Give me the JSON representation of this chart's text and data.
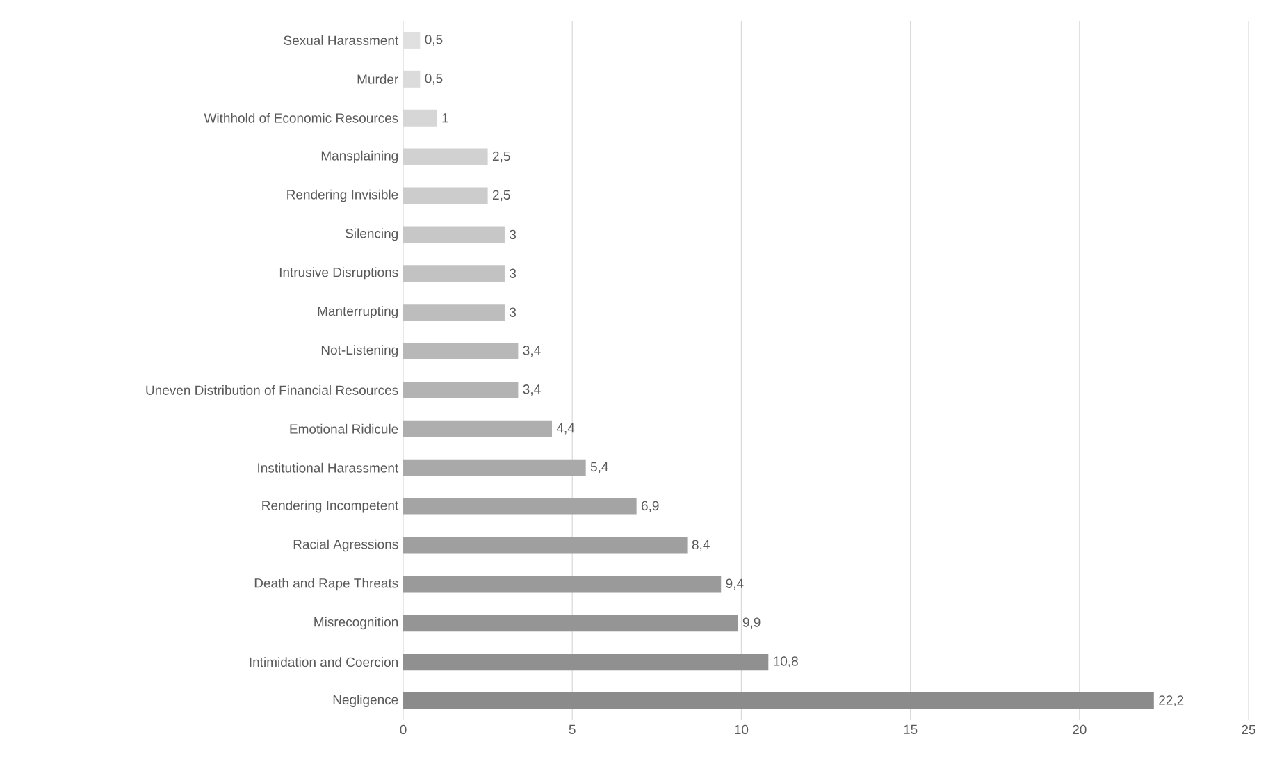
{
  "chart_data": {
    "type": "bar",
    "orientation": "horizontal",
    "categories": [
      "Sexual Harassment",
      "Murder",
      "Withhold of Economic Resources",
      "Mansplaining",
      "Rendering Invisible",
      "Silencing",
      "Intrusive Disruptions",
      "Manterrupting",
      "Not-Listening",
      "Uneven Distribution of Financial Resources",
      "Emotional Ridicule",
      "Institutional Harassment",
      "Rendering Incompetent",
      "Racial Agressions",
      "Death and Rape Threats",
      "Misrecognition",
      "Intimidation and Coercion",
      "Negligence"
    ],
    "values": [
      0.5,
      0.5,
      1,
      2.5,
      2.5,
      3,
      3,
      3,
      3.4,
      3.4,
      4.4,
      5.4,
      6.9,
      8.4,
      9.4,
      9.9,
      10.8,
      22.2
    ],
    "value_labels": [
      "0,5",
      "0,5",
      "1",
      "2,5",
      "2,5",
      "3",
      "3",
      "3",
      "3,4",
      "3,4",
      "4,4",
      "5,4",
      "6,9",
      "8,4",
      "9,4",
      "9,9",
      "10,8",
      "22,2"
    ],
    "colors": [
      "#e0e0e0",
      "#dbdbdb",
      "#d6d6d6",
      "#d1d1d1",
      "#cccccc",
      "#c7c7c7",
      "#c2c2c2",
      "#bdbdbd",
      "#b8b8b8",
      "#b3b3b3",
      "#aeaeae",
      "#a9a9a9",
      "#a4a4a4",
      "#9f9f9f",
      "#9a9a9a",
      "#959595",
      "#909090",
      "#8b8b8b"
    ],
    "xlim": [
      0,
      25
    ],
    "xticks": [
      0,
      5,
      10,
      15,
      20,
      25
    ],
    "grid": "x"
  }
}
